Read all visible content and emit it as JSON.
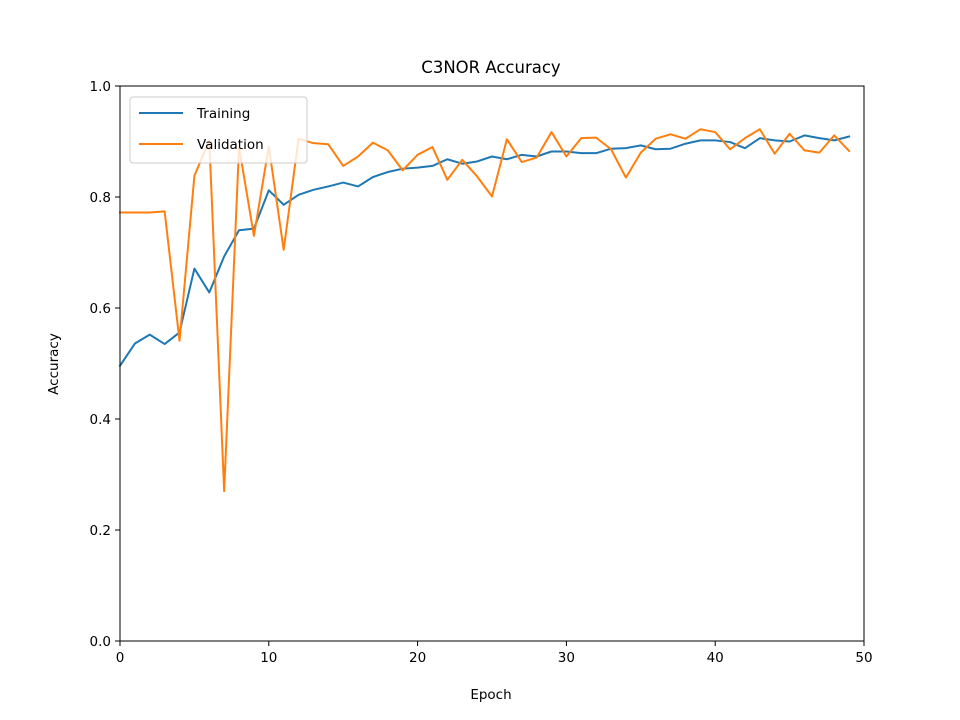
{
  "chart_data": {
    "type": "line",
    "title": "C3NOR Accuracy",
    "xlabel": "Epoch",
    "ylabel": "Accuracy",
    "xlim": [
      0,
      50
    ],
    "ylim": [
      0.0,
      1.0
    ],
    "xticks": [
      0,
      10,
      20,
      30,
      40,
      50
    ],
    "yticks": [
      0.0,
      0.2,
      0.4,
      0.6,
      0.8,
      1.0
    ],
    "xtick_labels": [
      "0",
      "10",
      "20",
      "30",
      "40",
      "50"
    ],
    "ytick_labels": [
      "0.0",
      "0.2",
      "0.4",
      "0.6",
      "0.8",
      "1.0"
    ],
    "grid": false,
    "legend_position": "top-left",
    "x": [
      0,
      1,
      2,
      3,
      4,
      5,
      6,
      7,
      8,
      9,
      10,
      11,
      12,
      13,
      14,
      15,
      16,
      17,
      18,
      19,
      20,
      21,
      22,
      23,
      24,
      25,
      26,
      27,
      28,
      29,
      30,
      31,
      32,
      33,
      34,
      35,
      36,
      37,
      38,
      39,
      40,
      41,
      42,
      43,
      44,
      45,
      46,
      47,
      48,
      49
    ],
    "series": [
      {
        "name": "Training",
        "color": "#1f77b4",
        "values": [
          0.496,
          0.536,
          0.552,
          0.535,
          0.556,
          0.671,
          0.628,
          0.693,
          0.74,
          0.743,
          0.812,
          0.786,
          0.804,
          0.813,
          0.819,
          0.826,
          0.819,
          0.836,
          0.845,
          0.851,
          0.853,
          0.856,
          0.868,
          0.86,
          0.864,
          0.873,
          0.868,
          0.876,
          0.873,
          0.882,
          0.882,
          0.879,
          0.879,
          0.887,
          0.888,
          0.893,
          0.886,
          0.887,
          0.896,
          0.902,
          0.902,
          0.899,
          0.888,
          0.906,
          0.902,
          0.9,
          0.911,
          0.906,
          0.902,
          0.909
        ]
      },
      {
        "name": "Validation",
        "color": "#ff7f0e",
        "values": [
          0.772,
          0.772,
          0.772,
          0.774,
          0.541,
          0.838,
          0.902,
          0.27,
          0.89,
          0.73,
          0.891,
          0.705,
          0.905,
          0.897,
          0.895,
          0.856,
          0.873,
          0.898,
          0.884,
          0.848,
          0.876,
          0.89,
          0.831,
          0.867,
          0.837,
          0.801,
          0.904,
          0.863,
          0.871,
          0.917,
          0.873,
          0.906,
          0.907,
          0.886,
          0.835,
          0.88,
          0.905,
          0.913,
          0.905,
          0.922,
          0.917,
          0.886,
          0.906,
          0.922,
          0.878,
          0.914,
          0.884,
          0.88,
          0.911,
          0.883
        ]
      }
    ]
  }
}
